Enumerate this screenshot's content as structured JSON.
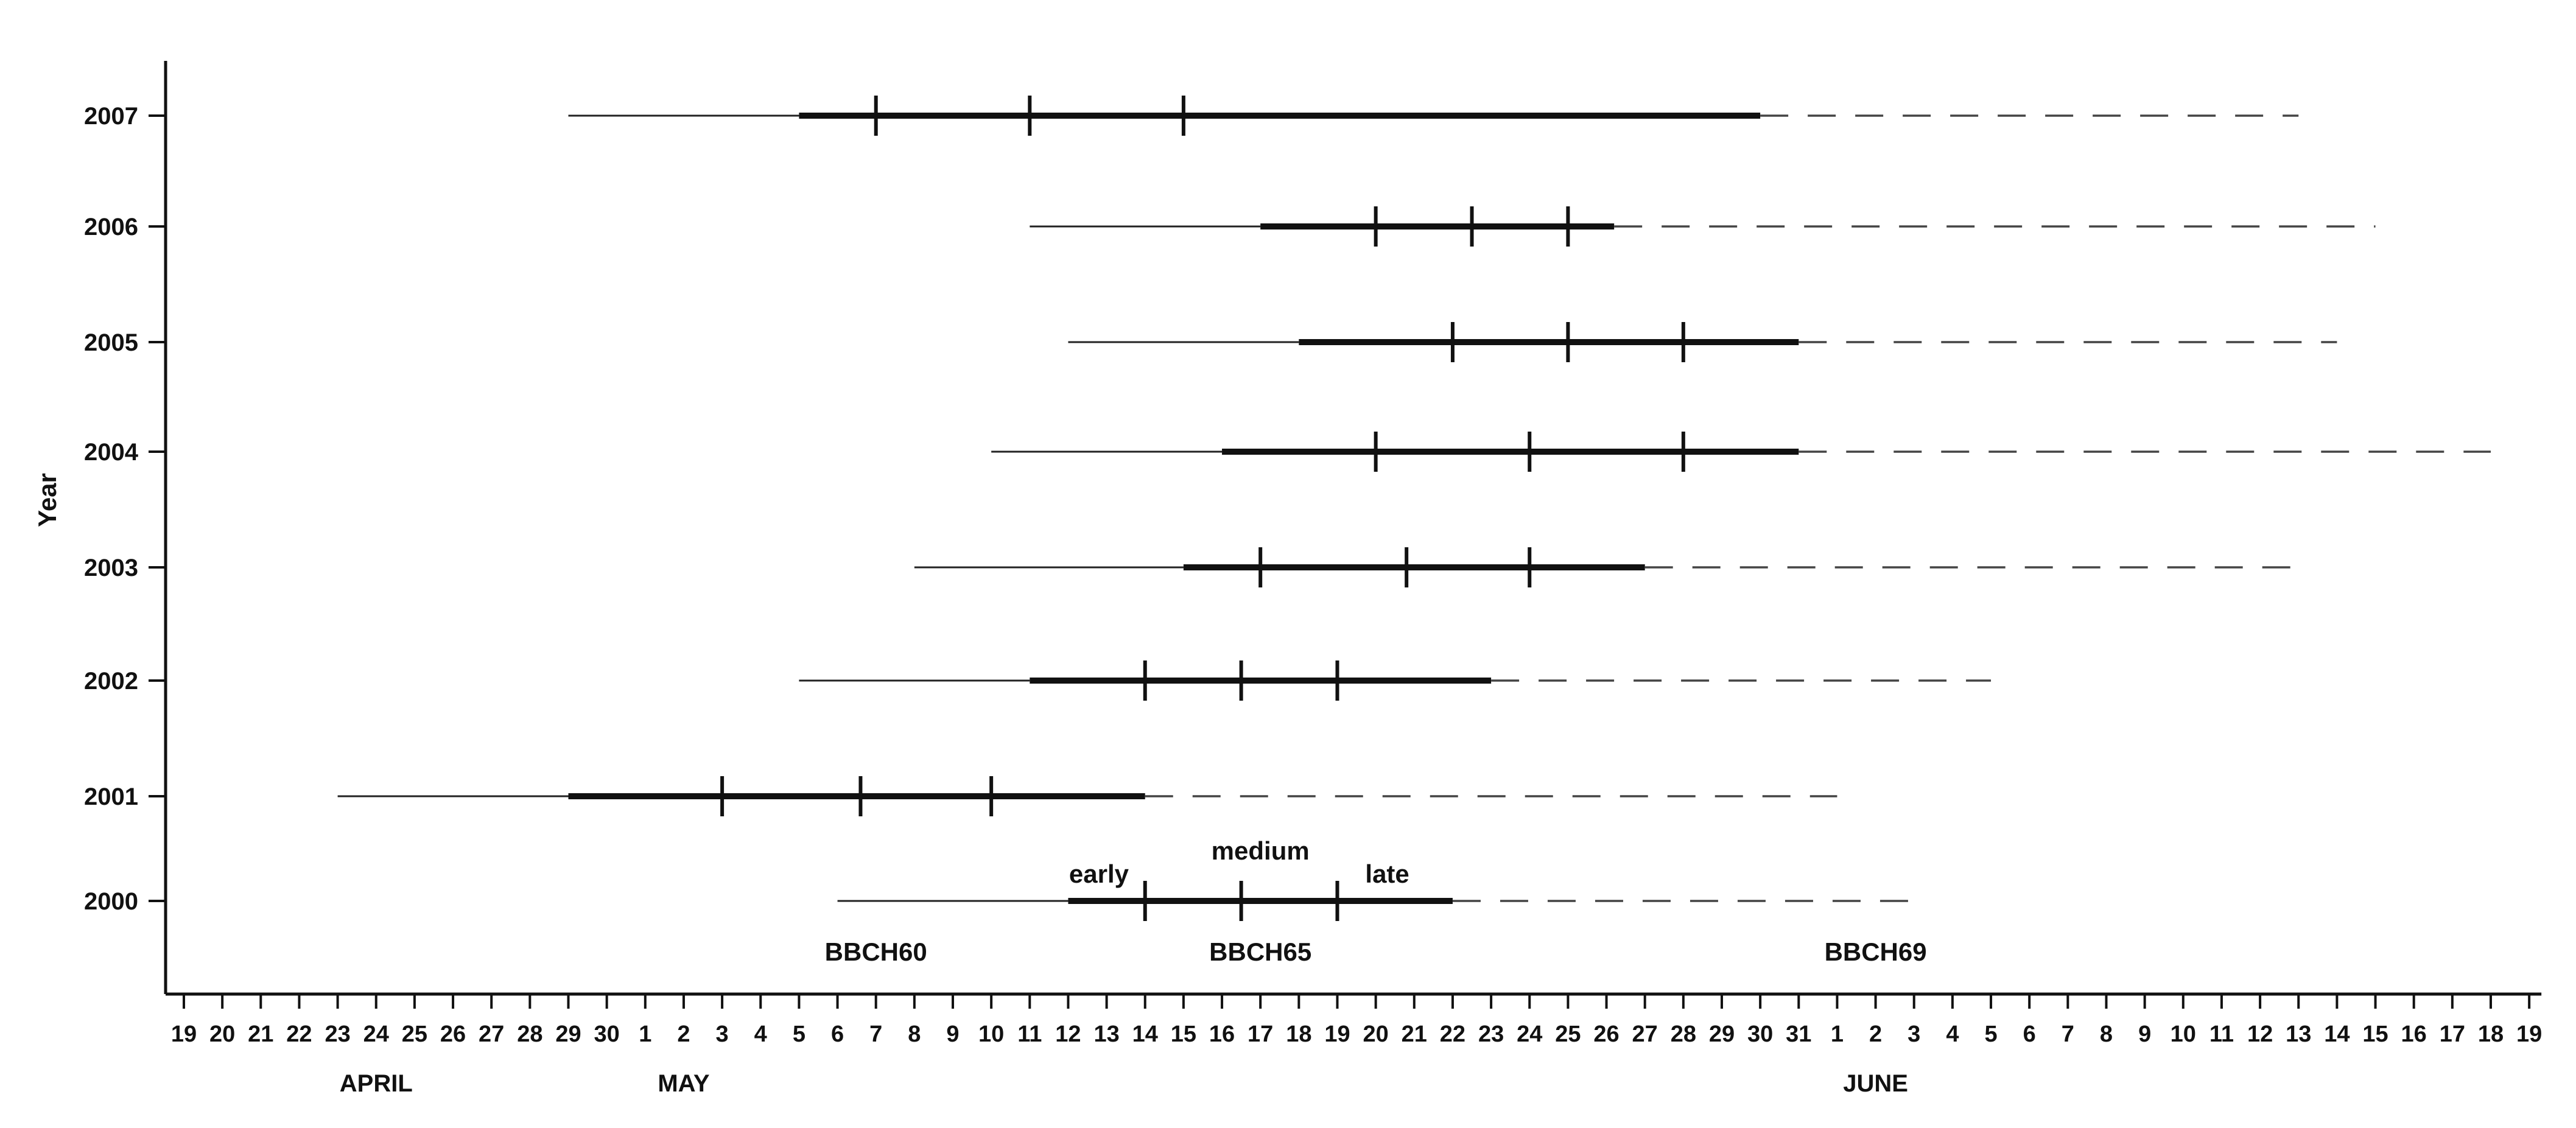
{
  "chart_data": {
    "type": "timeline",
    "xlabel": "",
    "ylabel": "Year",
    "x_tick_labels": [
      "19",
      "20",
      "21",
      "22",
      "23",
      "24",
      "25",
      "26",
      "27",
      "28",
      "29",
      "30",
      "1",
      "2",
      "3",
      "4",
      "5",
      "6",
      "7",
      "8",
      "9",
      "10",
      "11",
      "12",
      "13",
      "14",
      "15",
      "16",
      "17",
      "18",
      "19",
      "20",
      "21",
      "22",
      "23",
      "24",
      "25",
      "26",
      "27",
      "28",
      "29",
      "30",
      "31",
      "1",
      "2",
      "3",
      "4",
      "5",
      "6",
      "7",
      "8",
      "9",
      "10",
      "11",
      "12",
      "13",
      "14",
      "15",
      "16",
      "17",
      "18",
      "19"
    ],
    "xlim": [
      "04-19",
      "06-19"
    ],
    "months": [
      {
        "label": "APRIL",
        "date": "04-24"
      },
      {
        "label": "MAY",
        "date": "05-02"
      },
      {
        "label": "JUNE",
        "date": "06-02"
      }
    ],
    "stage_labels": [
      {
        "label": "BBCH60",
        "date": "05-07"
      },
      {
        "label": "BBCH65",
        "date": "05-17"
      },
      {
        "label": "BBCH69",
        "date": "06-02"
      }
    ],
    "phase_labels": [
      {
        "label": "early",
        "date": "05-12.8"
      },
      {
        "label": "medium",
        "date": "05-17"
      },
      {
        "label": "late",
        "date": "05-20.3"
      }
    ],
    "series": [
      {
        "year": "2007",
        "start": "04-29",
        "bold_start": "05-05",
        "ticks": [
          "05-07",
          "05-11",
          "05-15"
        ],
        "bold_end": "05-30",
        "dash_end": "06-13"
      },
      {
        "year": "2006",
        "start": "05-11",
        "bold_start": "05-17",
        "ticks": [
          "05-20",
          "05-22.5",
          "05-25"
        ],
        "bold_end": "05-26.2",
        "dash_end": "06-15"
      },
      {
        "year": "2005",
        "start": "05-12",
        "bold_start": "05-18",
        "ticks": [
          "05-22",
          "05-25",
          "05-28"
        ],
        "bold_end": "05-31",
        "dash_end": "06-14"
      },
      {
        "year": "2004",
        "start": "05-10",
        "bold_start": "05-16",
        "ticks": [
          "05-20",
          "05-24",
          "05-28"
        ],
        "bold_end": "05-31",
        "dash_end": "06-18"
      },
      {
        "year": "2003",
        "start": "05-08",
        "bold_start": "05-15",
        "ticks": [
          "05-17",
          "05-20.8",
          "05-24"
        ],
        "bold_end": "05-27",
        "dash_end": "06-13"
      },
      {
        "year": "2002",
        "start": "05-05",
        "bold_start": "05-11",
        "ticks": [
          "05-14",
          "05-16.5",
          "05-19"
        ],
        "bold_end": "05-23",
        "dash_end": "06-05"
      },
      {
        "year": "2001",
        "start": "04-23",
        "bold_start": "04-29",
        "ticks": [
          "05-03",
          "05-06.6",
          "05-10"
        ],
        "bold_end": "05-14",
        "dash_end": "06-01"
      },
      {
        "year": "2000",
        "start": "05-06",
        "bold_start": "05-12",
        "ticks": [
          "05-14",
          "05-16.5",
          "05-19"
        ],
        "bold_end": "05-22",
        "dash_end": "06-03"
      }
    ],
    "grid": false,
    "legend": "none"
  }
}
